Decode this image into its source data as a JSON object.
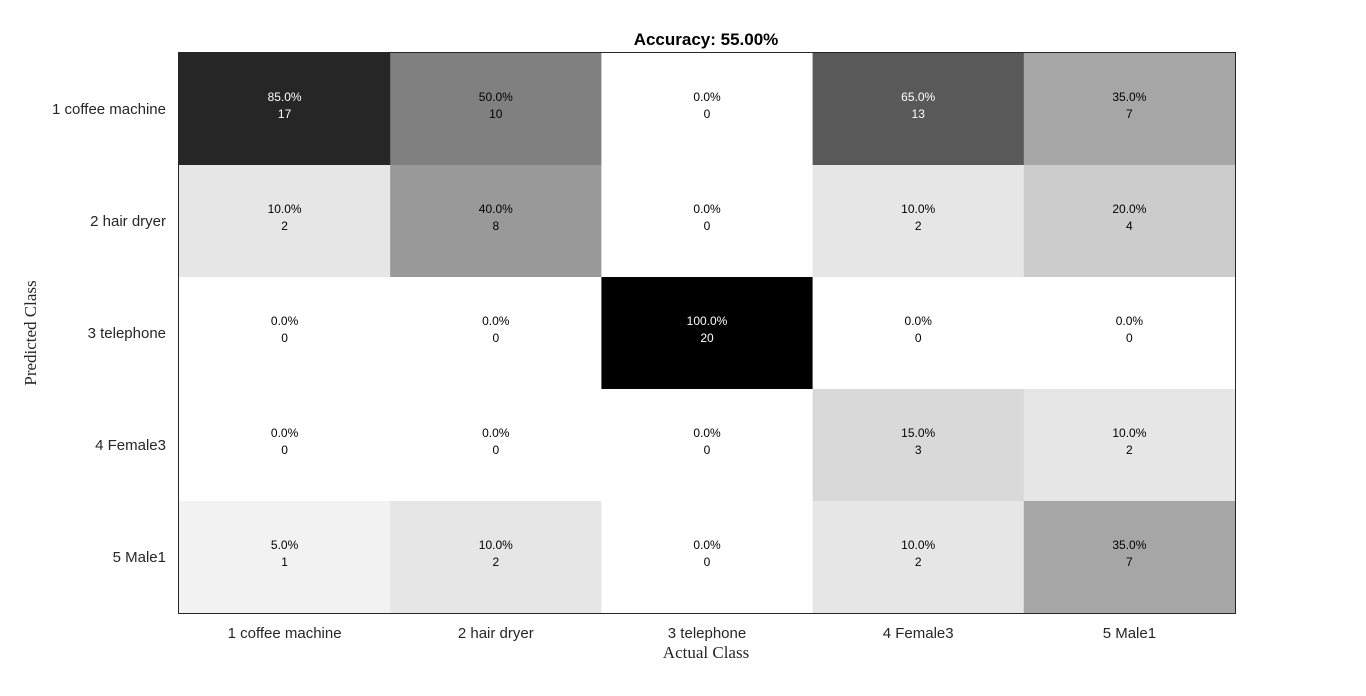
{
  "chart_data": {
    "type": "heatmap",
    "title": "Accuracy: 55.00%",
    "xlabel": "Actual Class",
    "ylabel": "Predicted Class",
    "x_categories": [
      "1 coffee machine",
      "2 hair dryer",
      "3 telephone",
      "4 Female3",
      "5 Male1"
    ],
    "y_categories": [
      "1 coffee machine",
      "2 hair dryer",
      "3 telephone",
      "4 Female3",
      "5 Male1"
    ],
    "percent_labels": [
      [
        "85.0%",
        "50.0%",
        "0.0%",
        "65.0%",
        "35.0%"
      ],
      [
        "10.0%",
        "40.0%",
        "0.0%",
        "10.0%",
        "20.0%"
      ],
      [
        "0.0%",
        "0.0%",
        "100.0%",
        "0.0%",
        "0.0%"
      ],
      [
        "0.0%",
        "0.0%",
        "0.0%",
        "15.0%",
        "10.0%"
      ],
      [
        "5.0%",
        "10.0%",
        "0.0%",
        "10.0%",
        "35.0%"
      ]
    ],
    "counts": [
      [
        17,
        10,
        0,
        13,
        7
      ],
      [
        2,
        8,
        0,
        2,
        4
      ],
      [
        0,
        0,
        20,
        0,
        0
      ],
      [
        0,
        0,
        0,
        3,
        2
      ],
      [
        1,
        2,
        0,
        2,
        7
      ]
    ],
    "value_range": [
      0,
      20
    ],
    "colormap": "white-to-black grayscale",
    "grid": false
  }
}
